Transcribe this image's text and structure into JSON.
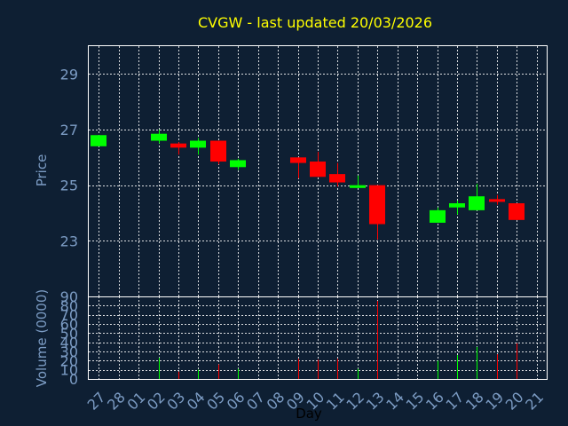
{
  "chart_data": {
    "type": "candlestick",
    "title": "CVGW - last updated 20/03/2026",
    "xlabel": "Day",
    "price_ylabel": "Price",
    "volume_ylabel": "Volume (0000)",
    "x_ticks": [
      "27",
      "28",
      "01",
      "02",
      "03",
      "04",
      "05",
      "06",
      "07",
      "08",
      "09",
      "10",
      "11",
      "12",
      "13",
      "14",
      "15",
      "16",
      "17",
      "18",
      "19",
      "20",
      "21"
    ],
    "price_yticks": [
      23,
      25,
      27,
      29
    ],
    "price_ylim": [
      21,
      30
    ],
    "volume_yticks": [
      0,
      10,
      20,
      30,
      40,
      50,
      60,
      70,
      80,
      90
    ],
    "volume_ylim": [
      0,
      90
    ],
    "grid": true,
    "colors": {
      "up": "#00ff00",
      "down": "#ff0000",
      "title": "#ffff00",
      "axis": "#7c9cc4",
      "background": "#0e1f33",
      "panel": "#0e1f33",
      "grid": "#ffffff"
    },
    "candles": [
      {
        "day": "27",
        "open": 26.4,
        "high": 26.8,
        "low": 26.4,
        "close": 26.8,
        "volume": 0
      },
      {
        "day": "02",
        "open": 26.6,
        "high": 27.0,
        "low": 26.5,
        "close": 26.85,
        "volume": 23
      },
      {
        "day": "03",
        "open": 26.5,
        "high": 26.55,
        "low": 26.1,
        "close": 26.35,
        "volume": 8
      },
      {
        "day": "04",
        "open": 26.35,
        "high": 26.7,
        "low": 26.1,
        "close": 26.6,
        "volume": 10
      },
      {
        "day": "05",
        "open": 26.6,
        "high": 26.6,
        "low": 25.75,
        "close": 25.85,
        "volume": 16
      },
      {
        "day": "06",
        "open": 25.65,
        "high": 25.95,
        "low": 25.55,
        "close": 25.9,
        "volume": 11
      },
      {
        "day": "09",
        "open": 26.0,
        "high": 26.0,
        "low": 25.25,
        "close": 25.8,
        "volume": 22
      },
      {
        "day": "10",
        "open": 25.85,
        "high": 26.2,
        "low": 25.3,
        "close": 25.3,
        "volume": 21
      },
      {
        "day": "11",
        "open": 25.4,
        "high": 25.8,
        "low": 24.95,
        "close": 25.1,
        "volume": 22
      },
      {
        "day": "12",
        "open": 24.9,
        "high": 25.35,
        "low": 24.9,
        "close": 25.0,
        "volume": 11
      },
      {
        "day": "13",
        "open": 25.0,
        "high": 25.0,
        "low": 23.05,
        "close": 23.6,
        "volume": 85
      },
      {
        "day": "16",
        "open": 23.65,
        "high": 24.2,
        "low": 23.65,
        "close": 24.1,
        "volume": 20
      },
      {
        "day": "17",
        "open": 24.2,
        "high": 24.45,
        "low": 23.95,
        "close": 24.35,
        "volume": 26
      },
      {
        "day": "18",
        "open": 24.1,
        "high": 25.05,
        "low": 24.1,
        "close": 24.6,
        "volume": 35
      },
      {
        "day": "19",
        "open": 24.5,
        "high": 24.65,
        "low": 24.3,
        "close": 24.4,
        "volume": 27
      },
      {
        "day": "20",
        "open": 24.35,
        "high": 24.35,
        "low": 23.75,
        "close": 23.75,
        "volume": 39
      }
    ]
  }
}
